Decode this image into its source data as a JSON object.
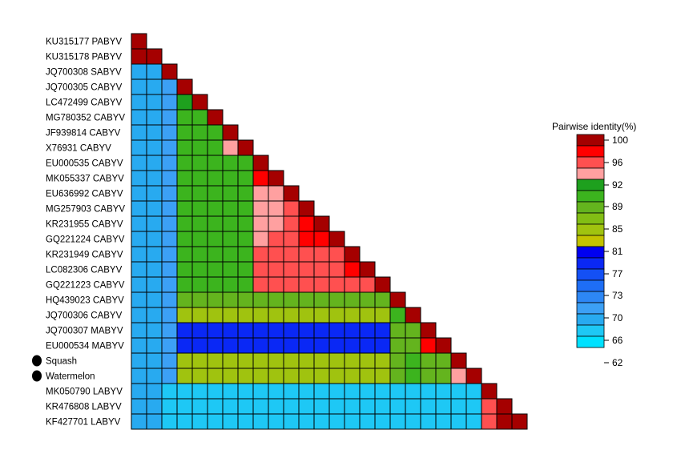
{
  "chart_data": {
    "type": "heatmap",
    "layout": "lower-triangular",
    "rows": [
      {
        "label": "KU315177  PABYV",
        "marker": false
      },
      {
        "label": "KU315178  PABYV",
        "marker": false
      },
      {
        "label": "JQ700308  SABYV",
        "marker": false
      },
      {
        "label": "JQ700305  CABYV",
        "marker": false
      },
      {
        "label": "LC472499  CABYV",
        "marker": false
      },
      {
        "label": "MG780352  CABYV",
        "marker": false
      },
      {
        "label": "JF939814  CABYV",
        "marker": false
      },
      {
        "label": "X76931  CABYV",
        "marker": false
      },
      {
        "label": "EU000535  CABYV",
        "marker": false
      },
      {
        "label": "MK055337  CABYV",
        "marker": false
      },
      {
        "label": "EU636992  CABYV",
        "marker": false
      },
      {
        "label": "MG257903  CABYV",
        "marker": false
      },
      {
        "label": "KR231955  CABYV",
        "marker": false
      },
      {
        "label": "GQ221224  CABYV",
        "marker": false
      },
      {
        "label": "KR231949  CABYV",
        "marker": false
      },
      {
        "label": "LC082306  CABYV",
        "marker": false
      },
      {
        "label": "GQ221223  CABYV",
        "marker": false
      },
      {
        "label": "HQ439023  CABYV",
        "marker": false
      },
      {
        "label": "JQ700306  CABYV",
        "marker": false
      },
      {
        "label": "JQ700307  MABYV",
        "marker": false
      },
      {
        "label": "EU000534  MABYV",
        "marker": false
      },
      {
        "label": "Squash",
        "marker": true
      },
      {
        "label": "Watermelon",
        "marker": true
      },
      {
        "label": "MK050790  LABYV",
        "marker": false
      },
      {
        "label": "KR476808  LABYV",
        "marker": false
      },
      {
        "label": "KF427701  LABYV",
        "marker": false
      }
    ],
    "matrix": [
      [
        100
      ],
      [
        98,
        100
      ],
      [
        65,
        65,
        100
      ],
      [
        65,
        65,
        66,
        100
      ],
      [
        65,
        65,
        66,
        91,
        100
      ],
      [
        65,
        65,
        66,
        90,
        90,
        100
      ],
      [
        65,
        65,
        66,
        90,
        90,
        90,
        100
      ],
      [
        65,
        65,
        66,
        90,
        90,
        90,
        94,
        100
      ],
      [
        65,
        65,
        66,
        90,
        90,
        90,
        90,
        90,
        100
      ],
      [
        65,
        65,
        66,
        90,
        90,
        90,
        90,
        90,
        97,
        100
      ],
      [
        65,
        65,
        66,
        90,
        90,
        90,
        90,
        90,
        94,
        94,
        100
      ],
      [
        65,
        65,
        66,
        90,
        90,
        90,
        90,
        90,
        94,
        94,
        95,
        100
      ],
      [
        65,
        65,
        66,
        90,
        90,
        90,
        90,
        90,
        94,
        94,
        95,
        97,
        100
      ],
      [
        65,
        65,
        66,
        90,
        90,
        90,
        90,
        90,
        94,
        95,
        96,
        97,
        97,
        100
      ],
      [
        65,
        65,
        66,
        90,
        90,
        90,
        90,
        90,
        95,
        95,
        96,
        96,
        96,
        96,
        100
      ],
      [
        65,
        65,
        66,
        90,
        90,
        90,
        90,
        90,
        95,
        95,
        96,
        96,
        96,
        96,
        97,
        100
      ],
      [
        65,
        65,
        66,
        90,
        90,
        90,
        90,
        90,
        95,
        95,
        96,
        96,
        96,
        96,
        96,
        96,
        100
      ],
      [
        65,
        65,
        66,
        88,
        88,
        88,
        88,
        88,
        88,
        88,
        88,
        88,
        88,
        88,
        88,
        88,
        88,
        100
      ],
      [
        65,
        65,
        66,
        83,
        83,
        83,
        83,
        83,
        83,
        83,
        83,
        83,
        83,
        83,
        83,
        83,
        83,
        90,
        100
      ],
      [
        65,
        65,
        66,
        75,
        75,
        75,
        75,
        75,
        75,
        75,
        75,
        75,
        75,
        75,
        75,
        75,
        75,
        88,
        88,
        100
      ],
      [
        65,
        65,
        66,
        75,
        75,
        75,
        75,
        75,
        75,
        75,
        75,
        75,
        75,
        75,
        75,
        75,
        75,
        88,
        88,
        97,
        100
      ],
      [
        65,
        65,
        66,
        83,
        83,
        83,
        83,
        83,
        83,
        83,
        83,
        83,
        83,
        83,
        83,
        83,
        83,
        88,
        90,
        88,
        88,
        100
      ],
      [
        65,
        65,
        66,
        83,
        83,
        83,
        83,
        83,
        83,
        83,
        83,
        83,
        83,
        83,
        83,
        83,
        83,
        88,
        90,
        88,
        88,
        94,
        100
      ],
      [
        65,
        65,
        63,
        63,
        63,
        63,
        63,
        63,
        63,
        63,
        63,
        63,
        63,
        63,
        63,
        63,
        63,
        63,
        63,
        63,
        63,
        63,
        63,
        100
      ],
      [
        65,
        65,
        63,
        63,
        63,
        63,
        63,
        63,
        63,
        63,
        63,
        63,
        63,
        63,
        63,
        63,
        63,
        63,
        63,
        63,
        63,
        63,
        63,
        95,
        100
      ],
      [
        65,
        65,
        63,
        63,
        63,
        63,
        63,
        63,
        63,
        63,
        63,
        63,
        63,
        63,
        63,
        63,
        63,
        63,
        63,
        63,
        63,
        63,
        63,
        95,
        98,
        100
      ]
    ],
    "legend": {
      "title": "Pairwise identity(%)",
      "placement": "right",
      "ticks": [
        100,
        96,
        92,
        89,
        85,
        81,
        77,
        73,
        70,
        66,
        62
      ],
      "bins": [
        {
          "min": 98,
          "color": "#a50000"
        },
        {
          "min": 96.5,
          "color": "#ff0000"
        },
        {
          "min": 94.5,
          "color": "#ff5050"
        },
        {
          "min": 92.5,
          "color": "#ffa0a0"
        },
        {
          "min": 90.5,
          "color": "#1ea01e"
        },
        {
          "min": 89,
          "color": "#3cb41e"
        },
        {
          "min": 87,
          "color": "#64b41e"
        },
        {
          "min": 85,
          "color": "#82be14"
        },
        {
          "min": 83,
          "color": "#a0c30f"
        },
        {
          "min": 79,
          "color": "#c3c300"
        },
        {
          "min": 76.5,
          "color": "#0000f0"
        },
        {
          "min": 74.5,
          "color": "#0a28f5"
        },
        {
          "min": 72.5,
          "color": "#1450f5"
        },
        {
          "min": 70,
          "color": "#1e6ef5"
        },
        {
          "min": 67.5,
          "color": "#2d87f5"
        },
        {
          "min": 65.5,
          "color": "#3ca0f5"
        },
        {
          "min": 64,
          "color": "#28aaf0"
        },
        {
          "min": 62.5,
          "color": "#1ec8f5"
        },
        {
          "min": 0,
          "color": "#00e1ff"
        }
      ],
      "swatches": [
        "#a50000",
        "#ff0000",
        "#ff5050",
        "#ffa0a0",
        "#1ea01e",
        "#3cb41e",
        "#64b41e",
        "#82be14",
        "#a0c30f",
        "#c3c300",
        "#0000f0",
        "#0a28f5",
        "#1450f5",
        "#1e6ef5",
        "#2d87f5",
        "#3ca0f5",
        "#28aaf0",
        "#1ec8f5",
        "#00e1ff"
      ]
    }
  }
}
